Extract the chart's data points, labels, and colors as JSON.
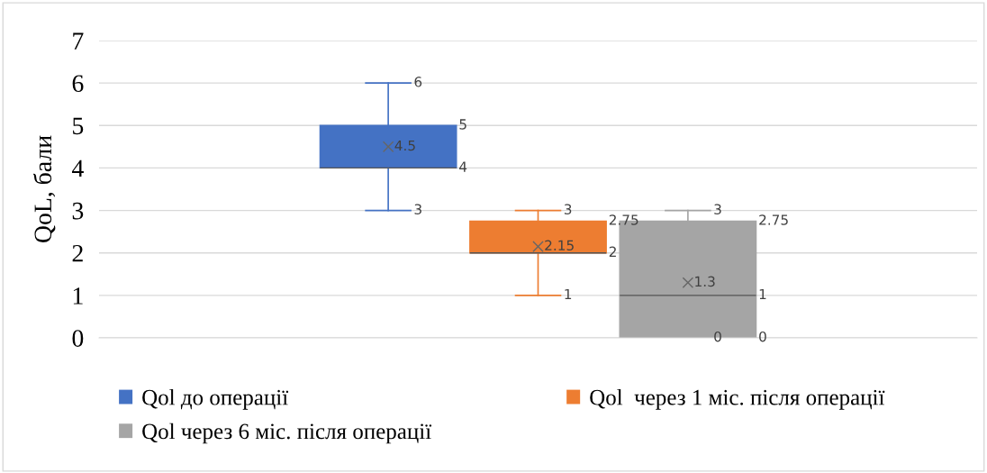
{
  "chart_data": {
    "type": "box",
    "ylabel": "QoL, бали",
    "categories": [
      null
    ],
    "series": [
      {
        "name": "Qol до операції",
        "color": "#4472c4",
        "boxes": [
          {
            "low": 3,
            "q1": 4,
            "median": 4,
            "q3": 5,
            "high": 6,
            "mean": 4.5
          }
        ],
        "value_labels": [
          [
            "3",
            "4",
            null,
            "5",
            "6",
            "4.5"
          ]
        ]
      },
      {
        "name": "Qol  через 1 міс. після операції",
        "color": "#ed7d31",
        "boxes": [
          {
            "low": 1,
            "q1": 2,
            "median": 2,
            "q3": 2.75,
            "high": 3,
            "mean": 2.15
          }
        ],
        "value_labels": [
          [
            "1",
            "2",
            null,
            "2.75",
            "3",
            "2.15"
          ]
        ]
      },
      {
        "name": "Qol через 6 міс. після операції",
        "color": "#a5a5a5",
        "boxes": [
          {
            "low": 0,
            "q1": 0,
            "median": 1,
            "q3": 2.75,
            "high": 3,
            "mean": 1.3
          }
        ],
        "value_labels": [
          [
            "0",
            "0",
            "1",
            "2.75",
            "3",
            "1.3"
          ]
        ]
      }
    ],
    "ylim": [
      0,
      7
    ],
    "yticks": [
      0,
      1,
      2,
      3,
      4,
      5,
      6,
      7
    ],
    "grid": "y",
    "legend": "bottom"
  }
}
